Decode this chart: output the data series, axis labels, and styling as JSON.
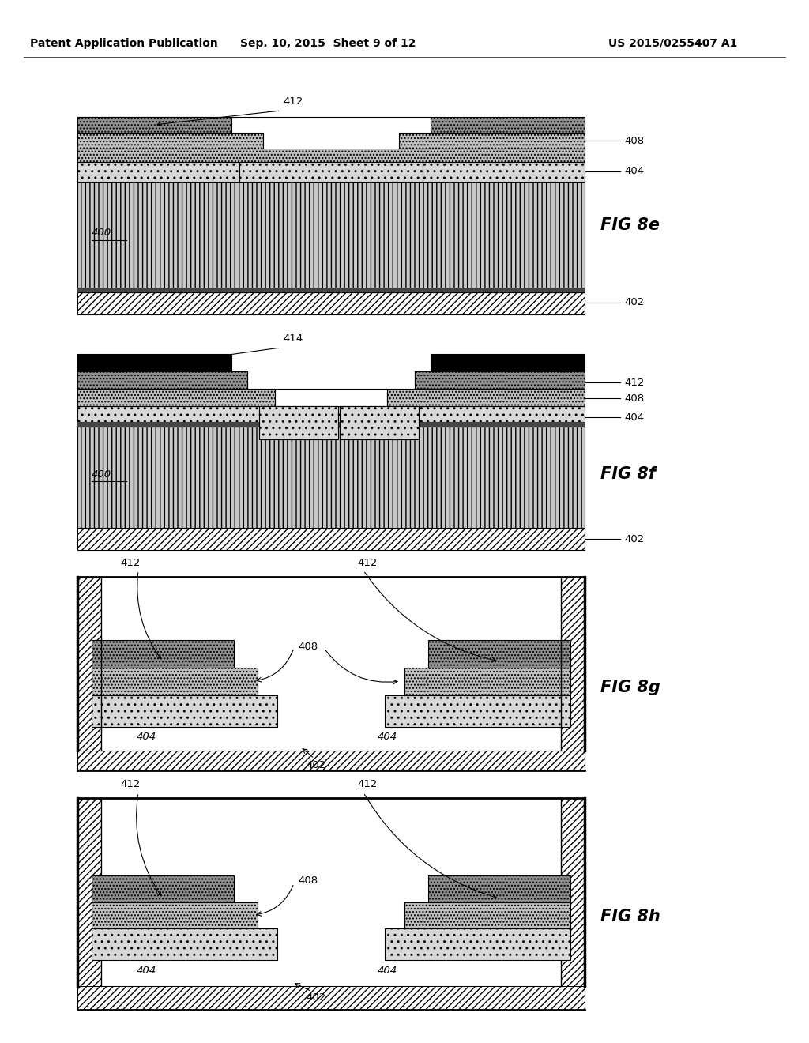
{
  "header_left": "Patent Application Publication",
  "header_mid": "Sep. 10, 2015  Sheet 9 of 12",
  "header_right": "US 2015/0255407 A1",
  "bg_color": "#ffffff",
  "col_412": "#909090",
  "col_408": "#c0c0c0",
  "col_404": "#d8d8d8",
  "col_400": "#c8c8c8",
  "col_402_fc": "#ffffff",
  "col_black": "#000000"
}
